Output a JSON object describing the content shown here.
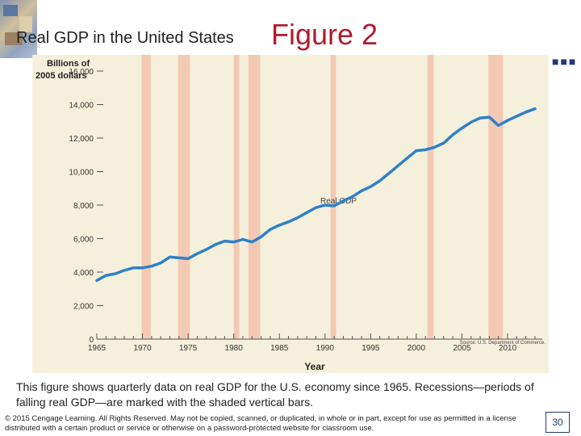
{
  "slide": {
    "subtitle": "Real GDP in the United States",
    "title": "Figure 2",
    "dots": "■■■",
    "caption": "This figure shows quarterly data on real GDP for the U.S. economy since 1965. Recessions—periods of falling real GDP—are marked with the shaded vertical bars.",
    "copyright": "© 2015 Cengage Learning. All Rights Reserved. May not be copied, scanned, or duplicated, in whole or in part, except for use as permitted in a license distributed with a certain product or service or otherwise on a password-protected website for classroom use.",
    "page_number": "30"
  },
  "colors": {
    "line": "#2f80c8",
    "recession": "#f4c9b4",
    "background": "#f5f0dc",
    "title": "#b01c2e"
  },
  "chart_data": {
    "type": "line",
    "ylabel_line1": "Billions of",
    "ylabel_line2": "2005 dollars",
    "xlabel": "Year",
    "series_label": "Real GDP",
    "source": "Source: U.S. Department of Commerce.",
    "xlim": [
      1965,
      2013.8
    ],
    "ylim": [
      0,
      16000
    ],
    "y_ticks": [
      0,
      2000,
      4000,
      6000,
      8000,
      10000,
      12000,
      14000,
      16000
    ],
    "y_tick_labels": [
      "0",
      "2,000",
      "4,000",
      "6,000",
      "8,000",
      "10,000",
      "12,000",
      "14,000",
      "16,000"
    ],
    "x_ticks": [
      1965,
      1970,
      1975,
      1980,
      1985,
      1990,
      1995,
      2000,
      2005,
      2010
    ],
    "x_tick_labels": [
      "1965",
      "1970",
      "1975",
      "1980",
      "1985",
      "1990",
      "1995",
      "2000",
      "2005",
      "2010"
    ],
    "recessions": [
      [
        1969.9,
        1970.9
      ],
      [
        1973.9,
        1975.2
      ],
      [
        1980.0,
        1980.6
      ],
      [
        1981.6,
        1982.9
      ],
      [
        1990.6,
        1991.2
      ],
      [
        2001.2,
        2001.9
      ],
      [
        2007.9,
        2009.5
      ]
    ],
    "series": [
      {
        "name": "Real GDP",
        "x": [
          1965,
          1966,
          1967,
          1968,
          1969,
          1970,
          1971,
          1972,
          1973,
          1974,
          1975,
          1976,
          1977,
          1978,
          1979,
          1980,
          1981,
          1982,
          1983,
          1984,
          1985,
          1986,
          1987,
          1988,
          1989,
          1990,
          1991,
          1992,
          1993,
          1994,
          1995,
          1996,
          1997,
          1998,
          1999,
          2000,
          2001,
          2002,
          2003,
          2004,
          2005,
          2006,
          2007,
          2008,
          2009,
          2010,
          2011,
          2012,
          2013
        ],
        "values": [
          3500,
          3800,
          3900,
          4100,
          4250,
          4250,
          4350,
          4550,
          4900,
          4850,
          4800,
          5100,
          5350,
          5650,
          5850,
          5800,
          5950,
          5800,
          6100,
          6550,
          6800,
          7000,
          7250,
          7550,
          7850,
          8000,
          7950,
          8250,
          8500,
          8850,
          9100,
          9450,
          9900,
          10350,
          10800,
          11250,
          11300,
          11450,
          11700,
          12200,
          12600,
          12950,
          13200,
          13250,
          12750,
          13050,
          13300,
          13550,
          13750
        ]
      }
    ]
  }
}
